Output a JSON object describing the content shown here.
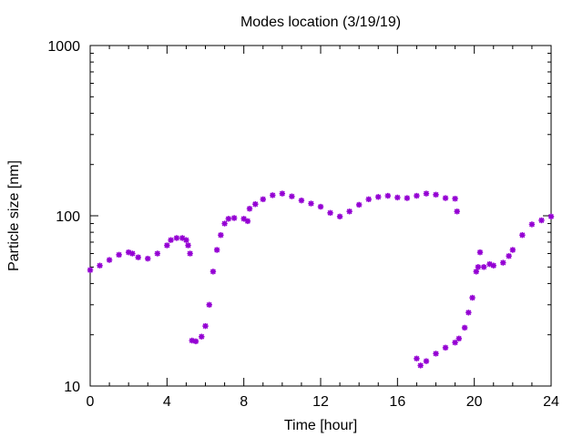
{
  "chart_data": {
    "type": "scatter",
    "title": "Modes location (3/19/19)",
    "xlabel": "Time [hour]",
    "ylabel": "Particle size [nm]",
    "xlim": [
      0,
      24
    ],
    "ylim": [
      10,
      1000
    ],
    "yscale": "log",
    "xticks": [
      0,
      4,
      8,
      12,
      16,
      20,
      24
    ],
    "xtick_labels": [
      "0",
      "4",
      "8",
      "12",
      "16",
      "20",
      "24"
    ],
    "yticks": [
      10,
      100,
      1000
    ],
    "ytick_labels": [
      "10",
      "100",
      "1000"
    ],
    "grid": false,
    "marker_color": "#9400d3",
    "series": [
      {
        "x": [
          0,
          0.5,
          1.0,
          1.5,
          2.0,
          2.2,
          2.5,
          3.0,
          3.5,
          4.0,
          4.2,
          4.5,
          4.8,
          5.0,
          5.1,
          5.2
        ],
        "y": [
          48,
          51,
          55,
          59,
          61,
          60,
          57,
          56,
          60,
          67,
          72,
          74,
          74,
          72,
          67,
          60
        ]
      },
      {
        "x": [
          5.3,
          5.5,
          5.8,
          6.0,
          6.2,
          6.4,
          6.6,
          6.8,
          7.0,
          7.2,
          7.5,
          8.0,
          8.2
        ],
        "y": [
          18.5,
          18.3,
          19.5,
          22.5,
          30,
          47,
          63,
          77,
          90,
          96,
          97,
          96,
          93
        ]
      },
      {
        "x": [
          8.3,
          8.6,
          9.0,
          9.5,
          10.0,
          10.5,
          11.0,
          11.5,
          12.0,
          12.5,
          13.0,
          13.5,
          14.0,
          14.5,
          15.0,
          15.5,
          16.0,
          16.5,
          17.0,
          17.5,
          18.0,
          18.5,
          19.0,
          19.1
        ],
        "y": [
          110,
          117,
          125,
          132,
          135,
          130,
          123,
          118,
          113,
          104,
          99,
          106,
          116,
          125,
          129,
          131,
          128,
          127,
          131,
          135,
          133,
          127,
          126,
          106
        ]
      },
      {
        "x": [
          17.0,
          17.2,
          17.5,
          18.0,
          18.5,
          19.0,
          19.2,
          19.5,
          19.7,
          19.9,
          20.1
        ],
        "y": [
          14.5,
          13.2,
          14,
          15.5,
          16.8,
          18,
          19,
          22,
          27,
          33,
          47
        ]
      },
      {
        "x": [
          20.2,
          20.3,
          20.5,
          20.8,
          21.0,
          21.5,
          21.8,
          22.0,
          22.5,
          23.0,
          23.5,
          24.0
        ],
        "y": [
          50,
          61,
          50,
          52,
          51,
          53,
          58,
          63,
          77,
          89,
          94,
          99
        ]
      }
    ]
  }
}
